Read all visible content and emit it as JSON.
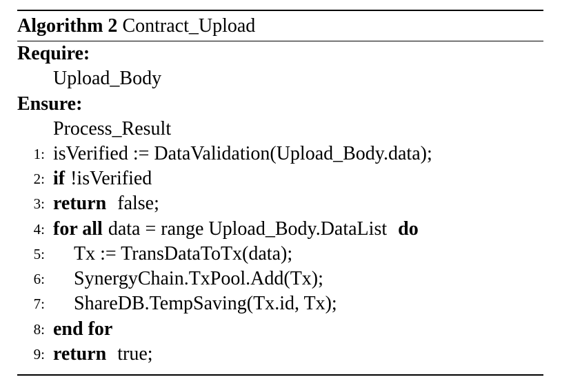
{
  "algorithm": {
    "label": "Algorithm 2",
    "name": "Contract_Upload",
    "require_label": "Require:",
    "require_value": "Upload_Body",
    "ensure_label": "Ensure:",
    "ensure_value": "Process_Result",
    "lines": [
      {
        "num": "1:",
        "text": "isVerified := DataValidation(Upload_Body.data);"
      },
      {
        "num": "2:",
        "kw": "if",
        "text": "!isVerified"
      },
      {
        "num": "3:",
        "kw": "return",
        "text": "false;"
      },
      {
        "num": "4:",
        "kw": "for all",
        "text": "data = range Upload_Body.DataList",
        "kw2": "do"
      },
      {
        "num": "5:",
        "text": "Tx := TransDataToTx(data);"
      },
      {
        "num": "6:",
        "text": "SynergyChain.TxPool.Add(Tx);"
      },
      {
        "num": "7:",
        "text": "ShareDB.TempSaving(Tx.id, Tx);"
      },
      {
        "num": "8:",
        "kw": "end for"
      },
      {
        "num": "9:",
        "kw": "return",
        "text": "true;"
      }
    ]
  }
}
